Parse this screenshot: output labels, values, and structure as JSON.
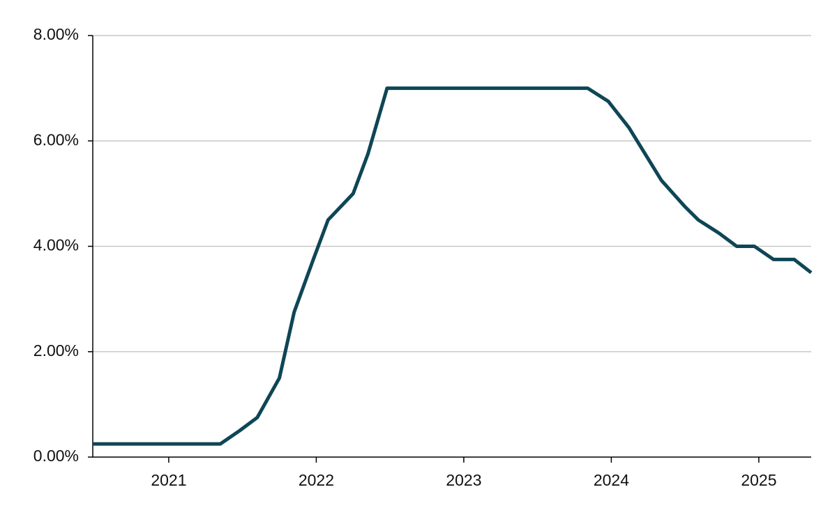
{
  "chart_data": {
    "type": "line",
    "color": "#0e4656",
    "grid": true,
    "x": [
      2020.485,
      2021.35,
      2021.48,
      2021.6,
      2021.75,
      2021.85,
      2021.98,
      2022.08,
      2022.25,
      2022.35,
      2022.48,
      2023.84,
      2023.98,
      2024.12,
      2024.34,
      2024.5,
      2024.59,
      2024.73,
      2024.85,
      2024.97,
      2025.1,
      2025.24,
      2025.355
    ],
    "values": [
      0.25,
      0.25,
      0.5,
      0.75,
      1.5,
      2.75,
      3.75,
      4.5,
      5.0,
      5.75,
      7.0,
      7.0,
      6.75,
      6.25,
      5.25,
      4.75,
      4.5,
      4.25,
      4.0,
      4.0,
      3.75,
      3.75,
      3.5
    ],
    "xlim": [
      2020.485,
      2025.355
    ],
    "xticks": [
      2021,
      2022,
      2023,
      2024,
      2025
    ],
    "ylim": [
      0,
      8
    ],
    "yticks": [
      {
        "value": 0,
        "label": "0.00%"
      },
      {
        "value": 2,
        "label": "2.00%"
      },
      {
        "value": 4,
        "label": "4.00%"
      },
      {
        "value": 6,
        "label": "6.00%"
      },
      {
        "value": 8,
        "label": "8.00%"
      }
    ]
  }
}
